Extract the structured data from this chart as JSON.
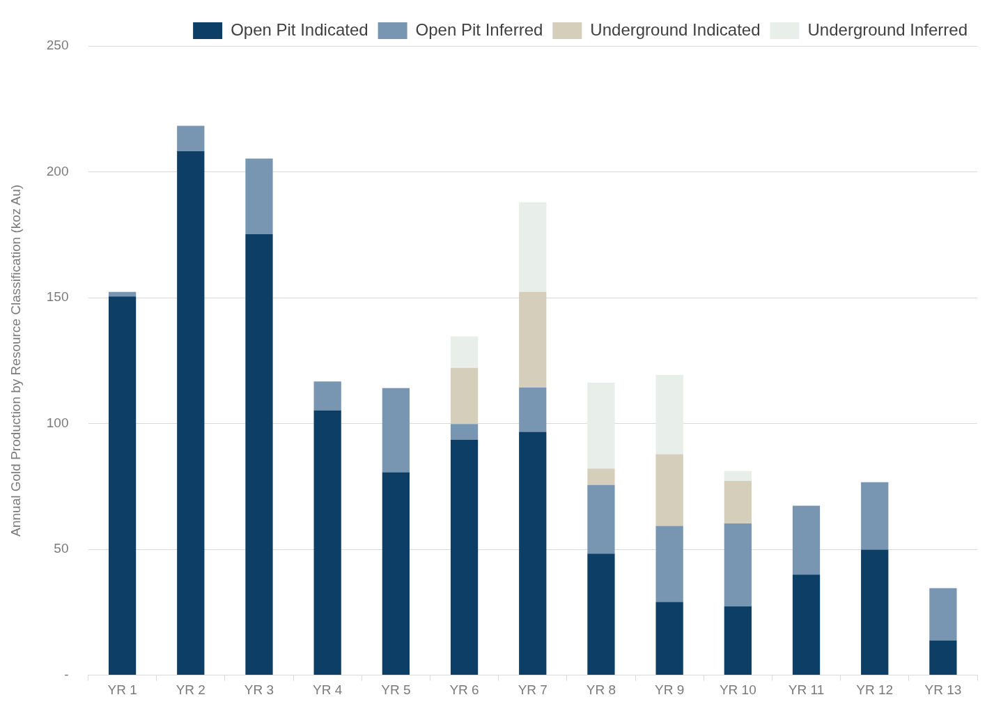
{
  "chart_data": {
    "type": "bar",
    "stacked": true,
    "ylabel": "Annual Gold Production by Resource Classification (koz Au)",
    "categories": [
      "YR 1",
      "YR 2",
      "YR 3",
      "YR 4",
      "YR 5",
      "YR 6",
      "YR 7",
      "YR 8",
      "YR 9",
      "YR 10",
      "YR 11",
      "YR 12",
      "YR 13"
    ],
    "series": [
      {
        "name": "Open Pit Indicated",
        "color": "#0d3f66",
        "values": [
          150.5,
          208.2,
          175.2,
          105.2,
          80.6,
          93.6,
          96.7,
          48.3,
          29.1,
          27.3,
          40.0,
          49.9,
          13.8
        ]
      },
      {
        "name": "Open Pit Inferred",
        "color": "#7896b2",
        "values": [
          1.8,
          10.1,
          30.1,
          11.5,
          33.5,
          6.2,
          17.6,
          27.3,
          30.2,
          33.0,
          27.3,
          26.8,
          20.8
        ]
      },
      {
        "name": "Underground Indicated",
        "color": "#d5cebb",
        "values": [
          null,
          null,
          null,
          null,
          null,
          22.3,
          38.0,
          6.5,
          28.5,
          16.9,
          null,
          null,
          null
        ]
      },
      {
        "name": "Underground Inferred",
        "color": "#e8eeea",
        "values": [
          null,
          null,
          null,
          null,
          null,
          12.5,
          35.6,
          34.1,
          31.5,
          3.9,
          null,
          null,
          null
        ]
      }
    ],
    "ylim": [
      0,
      250
    ],
    "yticks": [
      {
        "value": 0,
        "label": "-"
      },
      50,
      100,
      150,
      200,
      250
    ],
    "grid": "y",
    "legend": "top right"
  }
}
